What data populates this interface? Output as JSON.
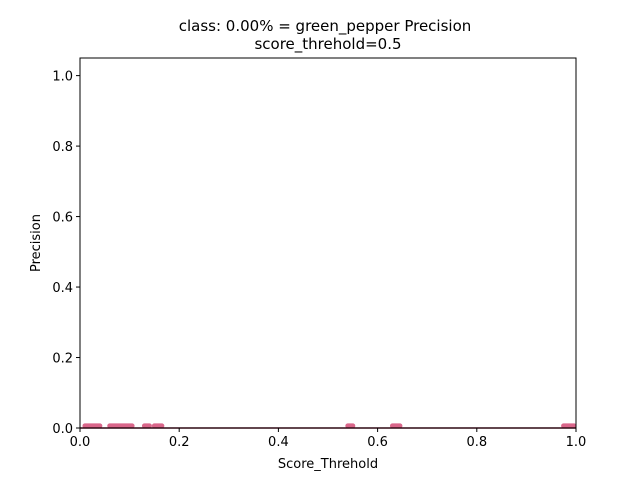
{
  "chart_data": {
    "type": "line",
    "title": "class: 0.00% = green_pepper Precision",
    "subtitle": "score_threhold=0.5",
    "xlabel": "Score_Threhold",
    "ylabel": "Precision",
    "xlim": [
      0.0,
      1.0
    ],
    "ylim": [
      0.0,
      1.05
    ],
    "xticks": [
      "0.0",
      "0.2",
      "0.4",
      "0.6",
      "0.8",
      "1.0"
    ],
    "yticks": [
      "0.0",
      "0.2",
      "0.4",
      "0.6",
      "0.8",
      "1.0"
    ],
    "grid": false,
    "series": [
      {
        "color": "#8b1a3a",
        "x": [
          0.0,
          1.0
        ],
        "y": [
          0.0,
          0.0
        ]
      }
    ],
    "highlight_segments": {
      "color": "#d9668a",
      "y": 0.006,
      "ranges": [
        [
          0.01,
          0.04
        ],
        [
          0.06,
          0.105
        ],
        [
          0.13,
          0.14
        ],
        [
          0.15,
          0.165
        ],
        [
          0.54,
          0.55
        ],
        [
          0.63,
          0.645
        ],
        [
          0.975,
          1.0
        ]
      ]
    }
  }
}
